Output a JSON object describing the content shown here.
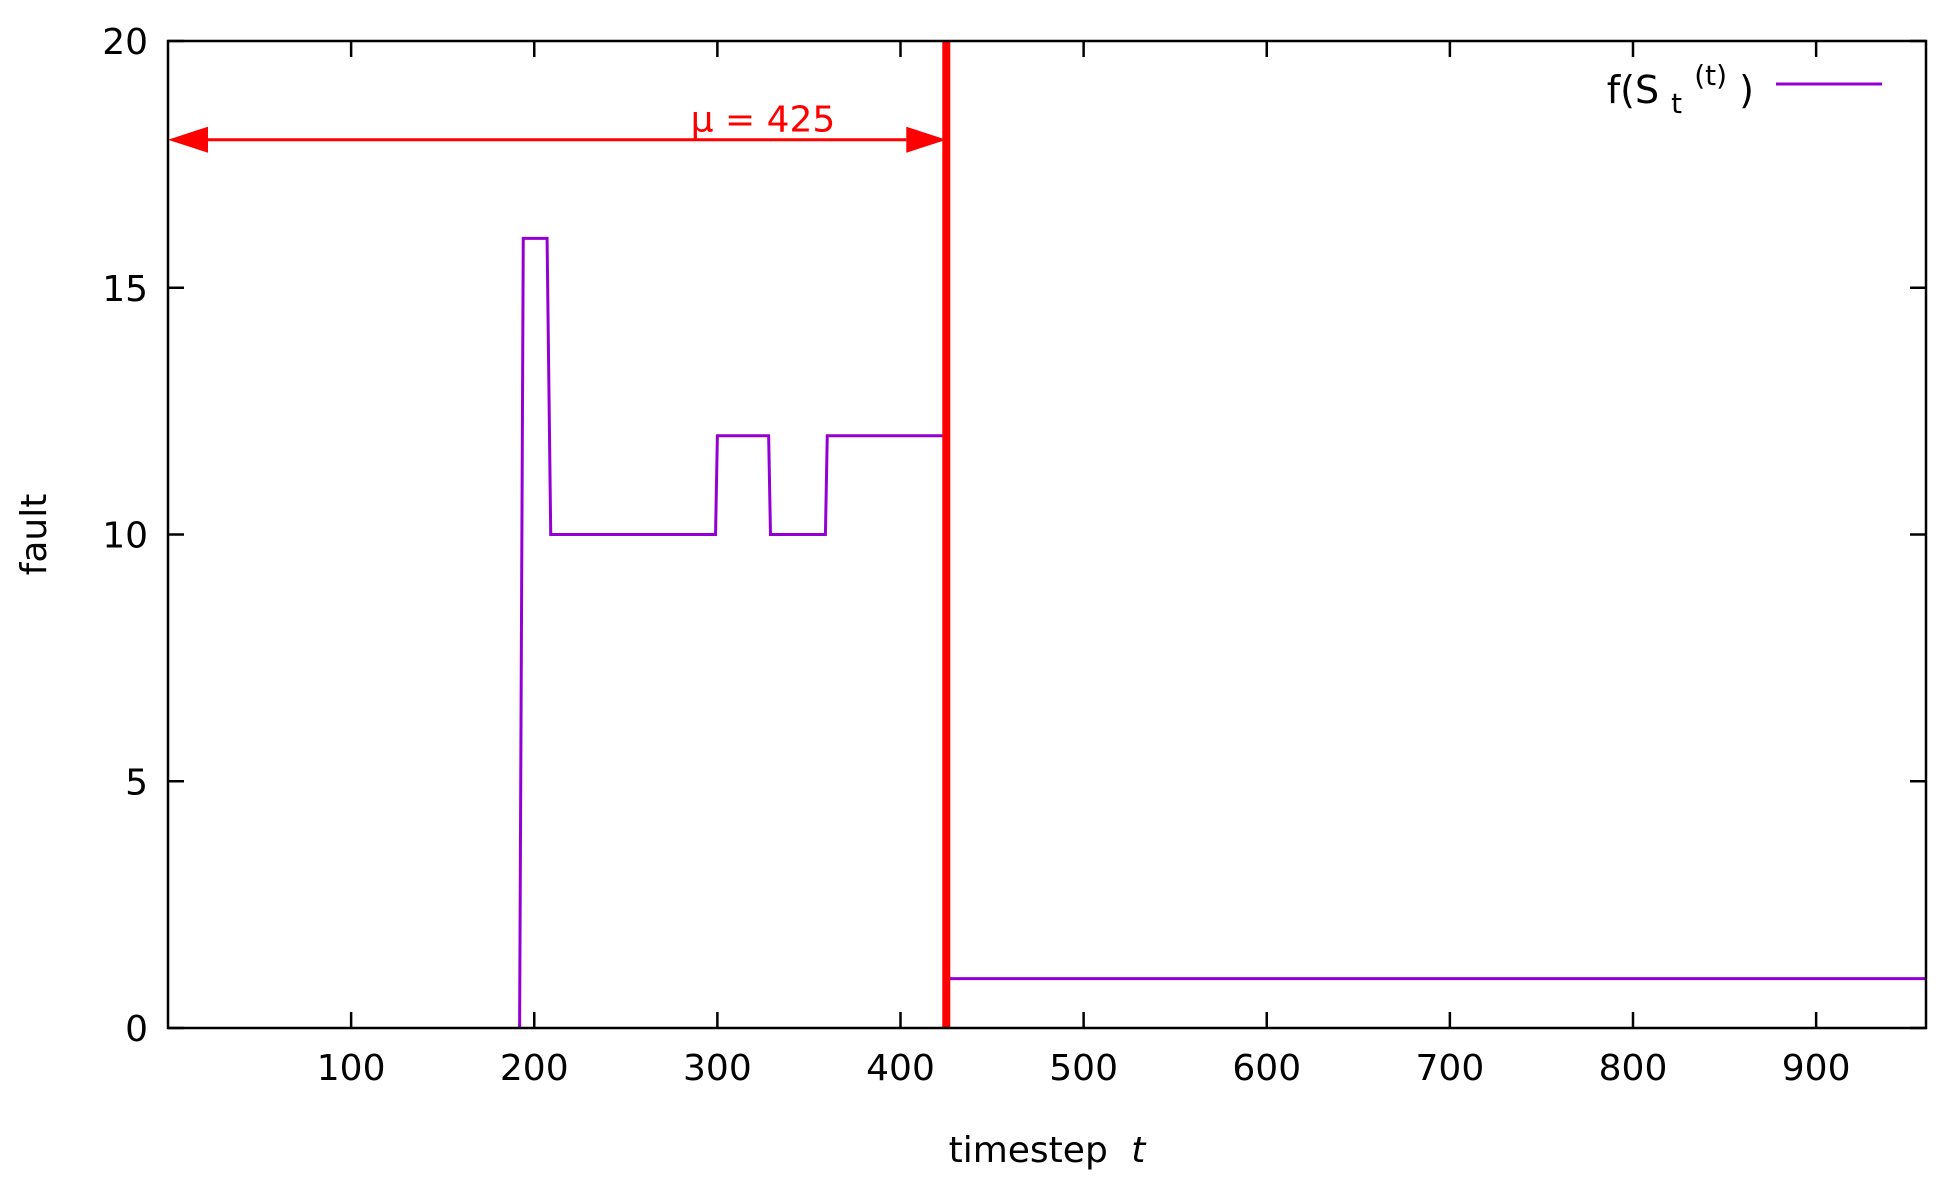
{
  "chart_data": {
    "type": "line",
    "step": true,
    "xlabel": "timestep",
    "xlabel_var": "t",
    "ylabel": "fault",
    "xlim": [
      0,
      960
    ],
    "ylim": [
      0,
      20
    ],
    "x_ticks": [
      100,
      200,
      300,
      400,
      500,
      600,
      700,
      800,
      900
    ],
    "y_ticks": [
      0,
      5,
      10,
      15,
      20
    ],
    "grid": false,
    "legend_position": "top-right",
    "series": [
      {
        "name_parts": {
          "base": "f(S",
          "sub": "t",
          "sup": "(t)",
          "close": ")"
        },
        "color": "#9400d3",
        "points": [
          [
            192,
            0
          ],
          [
            194,
            16
          ],
          [
            207,
            16
          ],
          [
            209,
            10
          ],
          [
            299,
            10
          ],
          [
            300,
            12
          ],
          [
            328,
            12
          ],
          [
            329,
            10
          ],
          [
            359,
            10
          ],
          [
            360,
            12
          ],
          [
            424,
            12
          ],
          [
            426,
            1
          ],
          [
            960,
            1
          ]
        ]
      }
    ],
    "annotations": {
      "threshold_line": {
        "x": 425,
        "color": "#ff0000"
      },
      "range_arrow": {
        "x_start": 0,
        "x_end": 425,
        "y": 18,
        "color": "#ff0000"
      },
      "label": {
        "symbol": "μ",
        "equals": "=",
        "value": 425
      }
    }
  }
}
